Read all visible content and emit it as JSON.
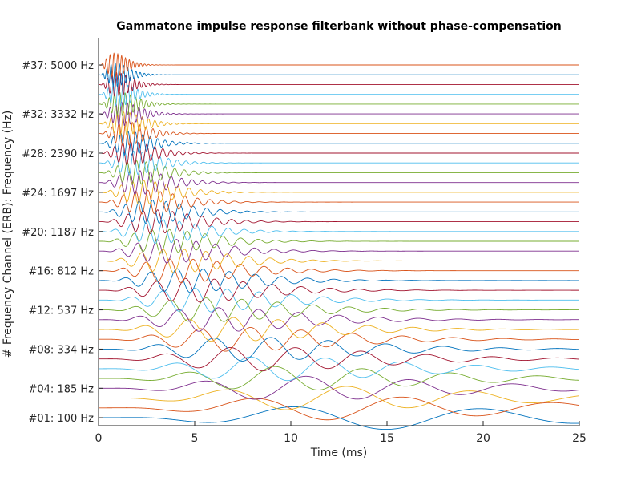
{
  "chart_data": {
    "type": "line",
    "title": "Gammatone impulse response filterbank without phase-compensation",
    "xlabel": "Time (ms)",
    "ylabel": "# Frequency Channel (ERB): Frequency (Hz)",
    "xlim": [
      0,
      25
    ],
    "x_ticks": [
      0,
      5,
      10,
      15,
      20,
      25
    ],
    "grid": false,
    "channel_count": 37,
    "f_min_hz": 100,
    "f_max_hz": 5000,
    "y_ticks": [
      {
        "channel": 1,
        "label": "#01:   100 Hz"
      },
      {
        "channel": 4,
        "label": "#04:   185 Hz"
      },
      {
        "channel": 8,
        "label": "#08:   334 Hz"
      },
      {
        "channel": 12,
        "label": "#12:   537 Hz"
      },
      {
        "channel": 16,
        "label": "#16:   812 Hz"
      },
      {
        "channel": 20,
        "label": "#20: 1187 Hz"
      },
      {
        "channel": 24,
        "label": "#24: 1697 Hz"
      },
      {
        "channel": 28,
        "label": "#28: 2390 Hz"
      },
      {
        "channel": 32,
        "label": "#32: 3332 Hz"
      },
      {
        "channel": 37,
        "label": "#37: 5000 Hz"
      }
    ],
    "colors": [
      "#0072bd",
      "#d95319",
      "#edb120",
      "#7e2f8e",
      "#77ac30",
      "#4dbeee",
      "#a2142f"
    ]
  }
}
